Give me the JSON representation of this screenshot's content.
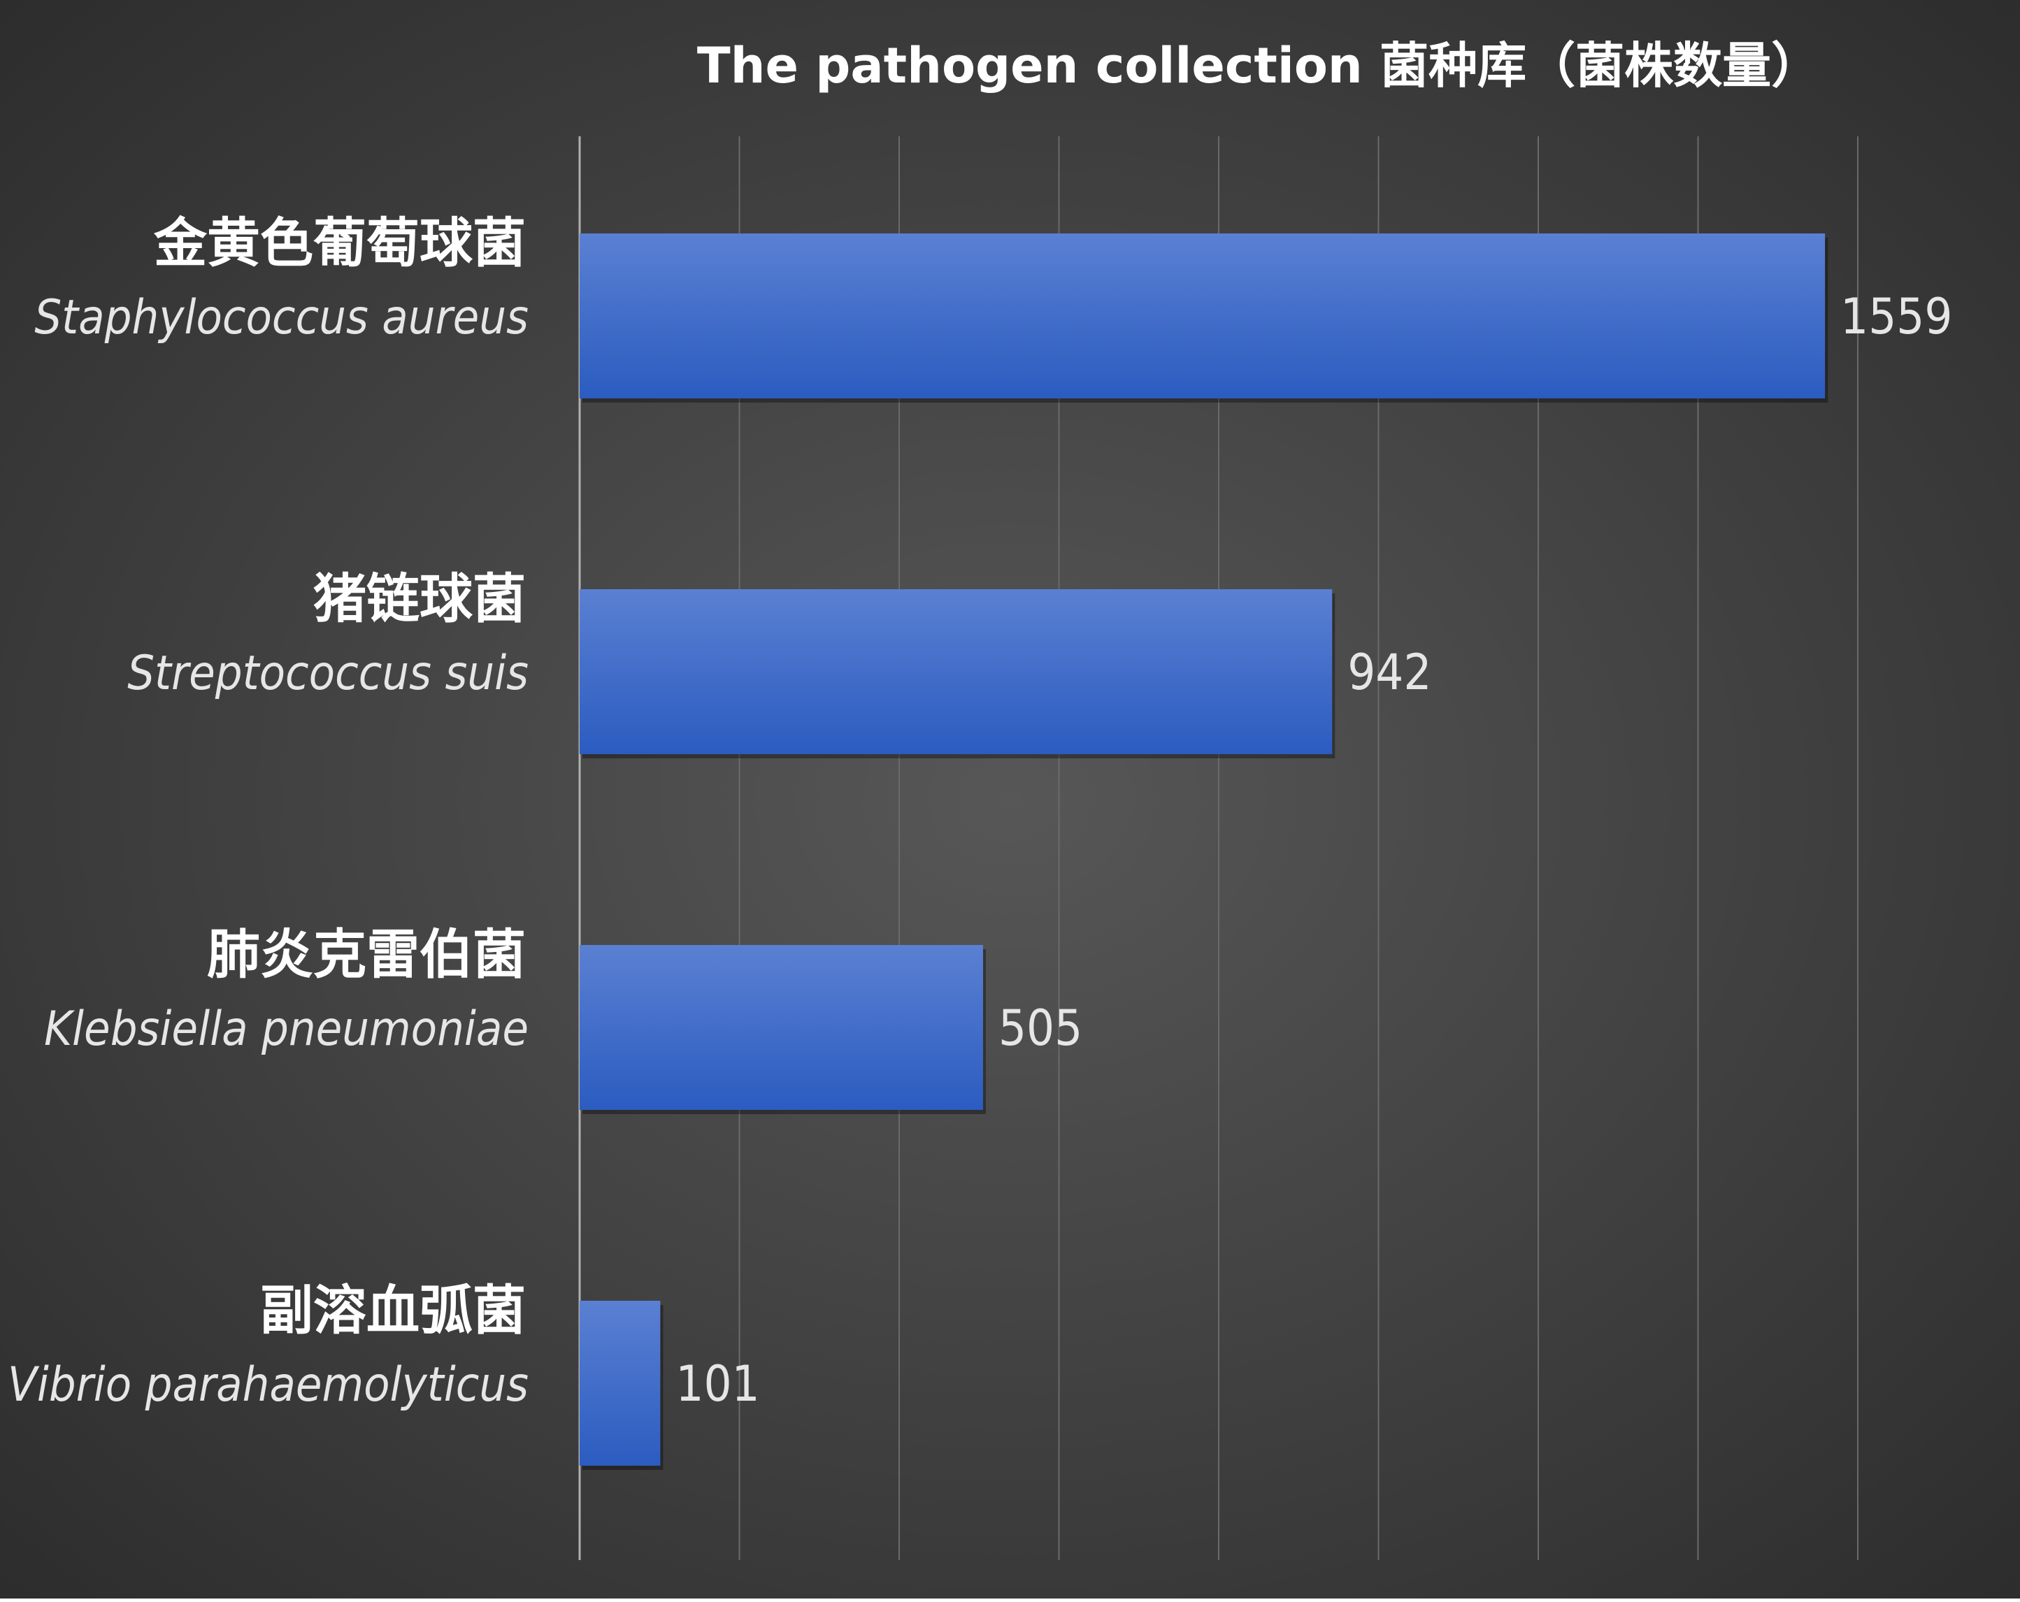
{
  "colors": {
    "bar_top": "#5a80d2",
    "bar_bottom": "#2b5cc0",
    "background_center": "#575757",
    "background_edge": "#2a2a2a",
    "grid": "#6a6a6a",
    "axis": "#b0b0b0"
  },
  "chart_data": {
    "type": "bar",
    "orientation": "horizontal",
    "title": "The pathogen collection 菌种库（菌株数量）",
    "xlabel": "",
    "ylabel": "",
    "xlim": [
      0,
      1600
    ],
    "grid": true,
    "categories": [
      {
        "name_cn": "金黄色葡萄球菌",
        "name_latin": "Staphylococcus aureus",
        "value": 1559
      },
      {
        "name_cn": "猪链球菌",
        "name_latin": "Streptococcus suis",
        "value": 942
      },
      {
        "name_cn": "肺炎克雷伯菌",
        "name_latin": "Klebsiella pneumoniae",
        "value": 505
      },
      {
        "name_cn": "副溶血弧菌",
        "name_latin": "Vibrio parahaemolyticus",
        "value": 101
      }
    ]
  }
}
